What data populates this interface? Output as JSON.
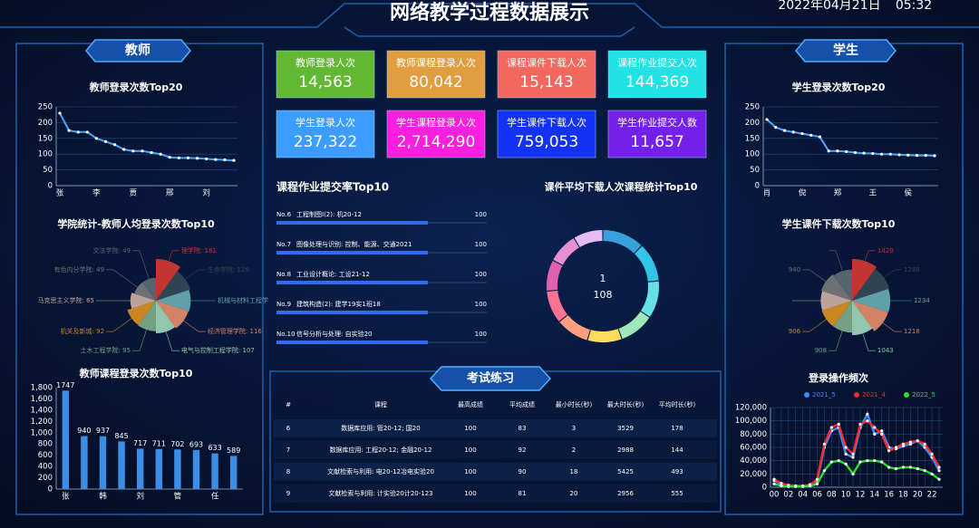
{
  "header": {
    "title": "网络教学过程数据展示",
    "date": "2022年04月21日",
    "time": "05:32"
  },
  "teacher_panel": {
    "title": "教师"
  },
  "student_panel": {
    "title": "学生"
  },
  "kpis": [
    {
      "label": "教师登录人次",
      "value": 14563,
      "value_label": "14,563",
      "color": "#62b832"
    },
    {
      "label": "教师课程登录人次",
      "value": 80042,
      "value_label": "80,042",
      "color": "#e29d3e"
    },
    {
      "label": "课程课件下载人次",
      "value": 15143,
      "value_label": "15,143",
      "color": "#f2675e"
    },
    {
      "label": "课程作业提交人次",
      "value": 144369,
      "value_label": "144,369",
      "color": "#22e2e6"
    },
    {
      "label": "学生登录人次",
      "value": 237322,
      "value_label": "237,322",
      "color": "#3d9cff"
    },
    {
      "label": "学生课程登录人次",
      "value": 2714290,
      "value_label": "2,714,290",
      "color": "#fb1fe0"
    },
    {
      "label": "学生课件下载人次",
      "value": 759053,
      "value_label": "759,053",
      "color": "#1432f5"
    },
    {
      "label": "学生作业提交人数",
      "value": 11657,
      "value_label": "11,657",
      "color": "#7420ea"
    }
  ],
  "submission": {
    "title": "课程作业提交率Top10",
    "xlim": [
      0,
      100
    ],
    "color": "#2f6cf0",
    "items": [
      {
        "rank": "No.6",
        "name": "工程制图Ⅰ(2): 机20-12",
        "value": 100
      },
      {
        "rank": "No.7",
        "name": "图像处理与识别: 控制、能源、交通2021",
        "value": 100
      },
      {
        "rank": "No.8",
        "name": "工业设计概论: 工设21-12",
        "value": 100
      },
      {
        "rank": "No.9",
        "name": "建筑构造(2): 建学19实1班18",
        "value": 100
      },
      {
        "rank": "No.10",
        "name": "信号分析与处理: 自实验20",
        "value": 100
      }
    ]
  },
  "exam": {
    "title": "考试练习",
    "columns": [
      "#",
      "课程",
      "最高成绩",
      "平均成绩",
      "最小时长(秒)",
      "最大时长(秒)",
      "平均时长(秒)"
    ],
    "rows": [
      [
        6,
        "数据库应用: 管20-12; 国20",
        100,
        83,
        3,
        3529,
        178
      ],
      [
        7,
        "数据库应用: 工程20-12; 金融20-12",
        100,
        92,
        2,
        2988,
        144
      ],
      [
        8,
        "文献检索与利用: 电20-12冶电实验20",
        100,
        90,
        18,
        5425,
        493
      ],
      [
        9,
        "文献检索与利用: 计实验20计20-123",
        100,
        81,
        20,
        2956,
        555
      ]
    ]
  },
  "chart_data": [
    {
      "type": "line",
      "title": "教师登录次数Top20",
      "categories": [
        "张",
        null,
        null,
        null,
        "李",
        null,
        null,
        null,
        "贾",
        null,
        null,
        null,
        "邢",
        null,
        null,
        null,
        "刘",
        null,
        null,
        null
      ],
      "values": [
        230,
        175,
        170,
        170,
        150,
        140,
        130,
        115,
        110,
        110,
        105,
        100,
        90,
        88,
        88,
        87,
        85,
        83,
        82,
        80
      ],
      "color": "#4aa8ff",
      "ylim": [
        0,
        250
      ],
      "yticks": [
        0,
        50,
        100,
        150,
        200,
        250
      ],
      "grid": true
    },
    {
      "type": "pie",
      "rose": true,
      "title": "学院统计-教师人均登录次数Top10",
      "labels": [
        "理学院: 161",
        "生命学院: 129",
        "机械与材料工程学",
        "经济管理学院: 116",
        "电气与控制工程学院: 107",
        "土木工程学院: 95",
        "机关及新城: 92",
        "马克思主义学院: 65",
        "有色内分学院: 49",
        "文法学院: 49"
      ],
      "values": [
        161,
        129,
        120,
        116,
        107,
        95,
        92,
        65,
        49,
        49
      ],
      "colors": [
        "#c23531",
        "#2f4554",
        "#61a0a8",
        "#d48265",
        "#91c7ae",
        "#749f83",
        "#ca8622",
        "#bda29a",
        "#6e7074",
        "#546570"
      ]
    },
    {
      "type": "bar",
      "title": "教师课程登录次数Top10",
      "categories": [
        "张",
        null,
        "韩",
        null,
        "刘",
        null,
        "管",
        null,
        "任",
        null
      ],
      "values": [
        1747,
        940,
        937,
        845,
        717,
        711,
        702,
        693,
        633,
        589
      ],
      "color": "#3a8ee6",
      "show_values": true,
      "ylim": [
        0,
        1800
      ],
      "yticks": [
        0,
        200,
        400,
        600,
        800,
        {
          "value": 1000,
          "label": "1,000"
        },
        {
          "value": 1200,
          "label": "1,200"
        },
        {
          "value": 1400,
          "label": "1,400"
        },
        {
          "value": 1600,
          "label": "1,600"
        },
        {
          "value": 1800,
          "label": "1,800"
        }
      ]
    },
    {
      "type": "donut",
      "title": "课件平均下载人次课程统计Top10",
      "center_label": "1",
      "center_value": 108,
      "values": [
        108,
        100,
        96,
        90,
        88,
        86,
        84,
        80,
        78,
        76
      ],
      "colors": [
        "#37a2da",
        "#32c5e9",
        "#67e0e3",
        "#9fe6b8",
        "#ffdb5c",
        "#ff9f7f",
        "#fb7293",
        "#e062ae",
        "#e690d1",
        "#e7bcf3"
      ]
    },
    {
      "type": "line",
      "title": "学生登录次数Top20",
      "categories": [
        "肖",
        null,
        null,
        null,
        "倪",
        null,
        null,
        null,
        "郑",
        null,
        null,
        null,
        "王",
        null,
        null,
        null,
        "侯",
        null,
        null,
        null
      ],
      "values": [
        210,
        185,
        175,
        170,
        165,
        160,
        155,
        110,
        110,
        108,
        105,
        103,
        102,
        100,
        100,
        98,
        97,
        96,
        96,
        95
      ],
      "color": "#4aa8ff",
      "ylim": [
        0,
        250
      ],
      "yticks": [
        0,
        50,
        100,
        150,
        200,
        250
      ],
      "grid": true
    },
    {
      "type": "pie",
      "rose": true,
      "title": "学生课件下载次数Top10",
      "labels": [
        "1420",
        "1288",
        "1234",
        "1218",
        "1043",
        "908",
        "906",
        null,
        "940",
        null
      ],
      "values": [
        1420,
        1288,
        1234,
        1218,
        1043,
        908,
        906,
        880,
        940,
        870
      ],
      "colors": [
        "#c23531",
        "#2f4554",
        "#61a0a8",
        "#d48265",
        "#91c7ae",
        "#749f83",
        "#ca8622",
        "#bda29a",
        "#6e7074",
        "#546570"
      ]
    },
    {
      "type": "line",
      "title": "登录操作频次",
      "categories": [
        "00",
        null,
        "02",
        null,
        "04",
        null,
        "06",
        null,
        "08",
        null,
        "10",
        null,
        "12",
        null,
        "14",
        null,
        "16",
        null,
        "18",
        null,
        "20",
        null,
        "22",
        null
      ],
      "series": [
        {
          "name": "2021_5",
          "color": "#3d8bff",
          "values": [
            10000,
            5000,
            3000,
            2000,
            2000,
            3000,
            10000,
            60000,
            85000,
            90000,
            50000,
            45000,
            90000,
            110000,
            80000,
            85000,
            60000,
            58000,
            62000,
            65000,
            70000,
            60000,
            45000,
            25000
          ]
        },
        {
          "name": "2021_4",
          "color": "#ff2a2a",
          "values": [
            12000,
            6000,
            3000,
            2000,
            2000,
            4000,
            12000,
            65000,
            90000,
            95000,
            60000,
            50000,
            95000,
            100000,
            90000,
            80000,
            55000,
            60000,
            65000,
            68000,
            70000,
            65000,
            50000,
            30000
          ]
        },
        {
          "name": "2022_5",
          "color": "#22e62a",
          "values": [
            5000,
            2000,
            1000,
            1000,
            1000,
            2000,
            5000,
            25000,
            38000,
            40000,
            35000,
            20000,
            38000,
            40000,
            40000,
            38000,
            30000,
            28000,
            30000,
            30000,
            28000,
            25000,
            20000,
            12000
          ]
        }
      ],
      "ylim": [
        0,
        120000
      ],
      "grid": true,
      "yticks": [
        0,
        {
          "value": 20000,
          "label": "20,000"
        },
        {
          "value": 40000,
          "label": "40,000"
        },
        {
          "value": 60000,
          "label": "60,000"
        },
        {
          "value": 80000,
          "label": "80,000"
        },
        {
          "value": 100000,
          "label": "100,000"
        },
        {
          "value": 120000,
          "label": "120,000"
        }
      ]
    }
  ]
}
